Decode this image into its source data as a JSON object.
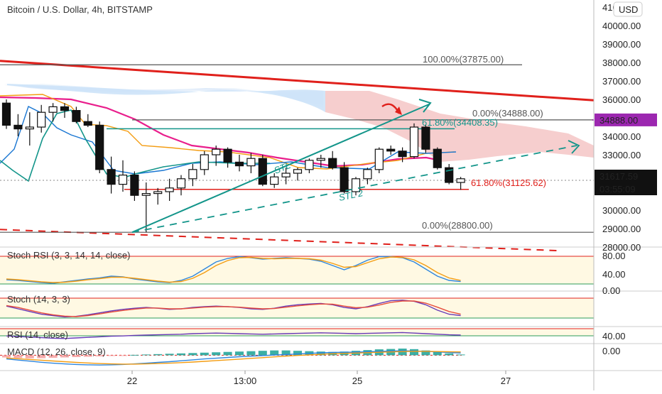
{
  "title": "Bitcoin / U.S. Dollar, 4h, BITSTAMP",
  "currency_button": "USD",
  "colors": {
    "up": "#ffffff",
    "down": "#111111",
    "trend_red": "#e0201b",
    "fib_green": "#13958a",
    "fib_red": "#e0201b",
    "fib_grey": "#555555",
    "cloud_green": "#cfe2f7",
    "cloud_red": "#f5c6c6",
    "marker": "#9c27b0",
    "stoch_k": "#2e86de",
    "stoch_d": "#f39c12"
  },
  "chart_data": [
    {
      "type": "candlestick",
      "name": "Bitcoin / U.S. Dollar, 4h, BITSTAMP",
      "ylim": [
        27700,
        41000
      ],
      "y_ticks": [
        "28000.00",
        "29000.00",
        "30000.00",
        "31000.00",
        "32000.00",
        "33000.00",
        "34000.00",
        "35000.00",
        "36000.00",
        "37000.00",
        "38000.00",
        "39000.00",
        "40000.00",
        "41000.00"
      ],
      "x_ticks": [
        "22",
        "13:00",
        "25",
        "27"
      ],
      "candles": [
        {
          "o": 35800,
          "h": 36000,
          "l": 34400,
          "c": 34600
        },
        {
          "o": 34600,
          "h": 35200,
          "l": 34000,
          "c": 34400
        },
        {
          "o": 34400,
          "h": 35300,
          "l": 33500,
          "c": 34500
        },
        {
          "o": 34500,
          "h": 35700,
          "l": 34200,
          "c": 35300
        },
        {
          "o": 35300,
          "h": 35800,
          "l": 34800,
          "c": 35600
        },
        {
          "o": 35600,
          "h": 35800,
          "l": 35000,
          "c": 35400
        },
        {
          "o": 35400,
          "h": 35600,
          "l": 34700,
          "c": 34800
        },
        {
          "o": 34800,
          "h": 35200,
          "l": 34500,
          "c": 34600
        },
        {
          "o": 34600,
          "h": 34800,
          "l": 32000,
          "c": 32200
        },
        {
          "o": 32200,
          "h": 32900,
          "l": 30900,
          "c": 31400
        },
        {
          "o": 31400,
          "h": 32700,
          "l": 31000,
          "c": 31900
        },
        {
          "o": 31900,
          "h": 32100,
          "l": 30500,
          "c": 30800
        },
        {
          "o": 30800,
          "h": 31500,
          "l": 28800,
          "c": 30900
        },
        {
          "o": 30900,
          "h": 31200,
          "l": 30300,
          "c": 31000
        },
        {
          "o": 31000,
          "h": 31700,
          "l": 30500,
          "c": 31200
        },
        {
          "o": 31200,
          "h": 31900,
          "l": 30800,
          "c": 31700
        },
        {
          "o": 31700,
          "h": 32500,
          "l": 31300,
          "c": 32200
        },
        {
          "o": 32200,
          "h": 33200,
          "l": 31900,
          "c": 33000
        },
        {
          "o": 33000,
          "h": 33500,
          "l": 32400,
          "c": 33300
        },
        {
          "o": 33300,
          "h": 33400,
          "l": 32300,
          "c": 32600
        },
        {
          "o": 32600,
          "h": 33000,
          "l": 32100,
          "c": 32400
        },
        {
          "o": 32400,
          "h": 33100,
          "l": 32000,
          "c": 32800
        },
        {
          "o": 32800,
          "h": 33000,
          "l": 31300,
          "c": 31400
        },
        {
          "o": 31400,
          "h": 32000,
          "l": 31200,
          "c": 31800
        },
        {
          "o": 31800,
          "h": 32300,
          "l": 31400,
          "c": 32000
        },
        {
          "o": 32000,
          "h": 32300,
          "l": 31600,
          "c": 32200
        },
        {
          "o": 32200,
          "h": 32800,
          "l": 32000,
          "c": 32700
        },
        {
          "o": 32700,
          "h": 33000,
          "l": 32300,
          "c": 32800
        },
        {
          "o": 32800,
          "h": 33200,
          "l": 32200,
          "c": 32300
        },
        {
          "o": 32300,
          "h": 32600,
          "l": 30900,
          "c": 31000
        },
        {
          "o": 31000,
          "h": 31800,
          "l": 30800,
          "c": 31700
        },
        {
          "o": 31700,
          "h": 32300,
          "l": 31400,
          "c": 32200
        },
        {
          "o": 32200,
          "h": 33400,
          "l": 32000,
          "c": 33300
        },
        {
          "o": 33300,
          "h": 33500,
          "l": 33000,
          "c": 33200
        },
        {
          "o": 33200,
          "h": 33400,
          "l": 32600,
          "c": 32900
        },
        {
          "o": 32900,
          "h": 34700,
          "l": 32800,
          "c": 34500
        },
        {
          "o": 34500,
          "h": 34600,
          "l": 33100,
          "c": 33300
        },
        {
          "o": 33300,
          "h": 33400,
          "l": 32200,
          "c": 32300
        },
        {
          "o": 32300,
          "h": 32500,
          "l": 31400,
          "c": 31500
        },
        {
          "o": 31500,
          "h": 31800,
          "l": 31100,
          "c": 31700
        }
      ],
      "hlines": [
        {
          "label": "100.00%(37875.00)",
          "y": 37875,
          "color": "#555555"
        },
        {
          "label": "0.00%(34888.00)",
          "y": 34888,
          "color": "#555555"
        },
        {
          "label": "61.80%(34408.35)",
          "y": 34408.35,
          "color": "#13958a"
        },
        {
          "label": "61.80%(31125.62)",
          "y": 31125.62,
          "color": "#e0201b"
        },
        {
          "label": "0.00%(28800.00)",
          "y": 28800,
          "color": "#555555"
        }
      ],
      "price_tags": [
        {
          "label": "34888.00",
          "y": 34888,
          "color": "#9c27b0"
        },
        {
          "label": "31617.59",
          "y": 31617.59,
          "color": "#111111"
        },
        {
          "label": "03:55:09",
          "y": 30950,
          "color": "#111111"
        }
      ],
      "drawing_labels": [
        "STL",
        "STL 2"
      ]
    },
    {
      "type": "line",
      "name": "Stoch RSI (3, 3, 14, 14, close)",
      "y_ticks": [
        "80.00",
        "40.00",
        "0.00"
      ],
      "series": [
        {
          "values": [
            20,
            18,
            15,
            12,
            10,
            14,
            18,
            22,
            25,
            30,
            28,
            22,
            18,
            14,
            12,
            18,
            30,
            50,
            70,
            80,
            85,
            82,
            78,
            80,
            82,
            80,
            78,
            72,
            60,
            48,
            60,
            75,
            85,
            85,
            82,
            70,
            50,
            30,
            18,
            15
          ]
        },
        {
          "values": [
            22,
            20,
            17,
            14,
            12,
            13,
            16,
            20,
            23,
            27,
            27,
            24,
            20,
            16,
            13,
            15,
            24,
            40,
            60,
            74,
            82,
            83,
            80,
            79,
            80,
            80,
            79,
            75,
            66,
            55,
            57,
            68,
            79,
            84,
            83,
            76,
            60,
            40,
            25,
            18
          ]
        }
      ]
    },
    {
      "type": "line",
      "name": "Stoch (14, 3, 3)",
      "series": [
        {
          "values": [
            60,
            50,
            40,
            30,
            25,
            20,
            22,
            28,
            35,
            42,
            48,
            52,
            55,
            52,
            48,
            50,
            55,
            58,
            60,
            58,
            55,
            50,
            48,
            52,
            60,
            65,
            68,
            70,
            65,
            55,
            50,
            58,
            70,
            80,
            82,
            78,
            65,
            45,
            30,
            25
          ]
        },
        {
          "values": [
            62,
            55,
            45,
            35,
            28,
            23,
            21,
            25,
            31,
            38,
            44,
            49,
            53,
            53,
            50,
            50,
            53,
            56,
            58,
            58,
            56,
            53,
            50,
            51,
            56,
            61,
            65,
            68,
            67,
            60,
            54,
            56,
            64,
            74,
            79,
            79,
            71,
            56,
            40,
            30
          ]
        }
      ]
    },
    {
      "type": "line",
      "name": "RSI (14, close)",
      "y_ticks": [
        "40.00"
      ],
      "series": [
        {
          "values": [
            42,
            40,
            38,
            36,
            34,
            33,
            35,
            37,
            39,
            41,
            42,
            44,
            45,
            46,
            47,
            48,
            50,
            51,
            52,
            51,
            50,
            49,
            48,
            49,
            50,
            51,
            52,
            53,
            52,
            51,
            50,
            51,
            52,
            53,
            54,
            52,
            50,
            48,
            46,
            45
          ]
        }
      ]
    },
    {
      "type": "bar",
      "name": "MACD (12, 26, close, 9)",
      "y_ticks": [
        "0.00"
      ],
      "values": [
        -120,
        -150,
        -170,
        -160,
        -140,
        -120,
        -100,
        -80,
        -60,
        -40,
        -20,
        20,
        40,
        60,
        80,
        100,
        120,
        140,
        160,
        180,
        200,
        220,
        240,
        260,
        260,
        240,
        220,
        200,
        180,
        200,
        240,
        280,
        320,
        340,
        360,
        330,
        260,
        180,
        100,
        40
      ],
      "series": [
        {
          "values": [
            -200,
            -260,
            -320,
            -380,
            -430,
            -470,
            -500,
            -520,
            -530,
            -520,
            -500,
            -470,
            -430,
            -390,
            -350,
            -300,
            -250,
            -200,
            -160,
            -120,
            -80,
            -50,
            -20,
            10,
            40,
            70,
            100,
            130,
            150,
            160,
            170,
            190,
            210,
            230,
            240,
            230,
            210,
            180,
            150,
            120
          ]
        },
        {
          "values": [
            -150,
            -190,
            -230,
            -270,
            -310,
            -350,
            -390,
            -420,
            -450,
            -470,
            -480,
            -480,
            -470,
            -450,
            -430,
            -400,
            -370,
            -330,
            -290,
            -250,
            -210,
            -170,
            -130,
            -90,
            -50,
            -10,
            20,
            50,
            80,
            100,
            120,
            140,
            160,
            180,
            200,
            210,
            210,
            200,
            190,
            180
          ]
        }
      ]
    }
  ]
}
